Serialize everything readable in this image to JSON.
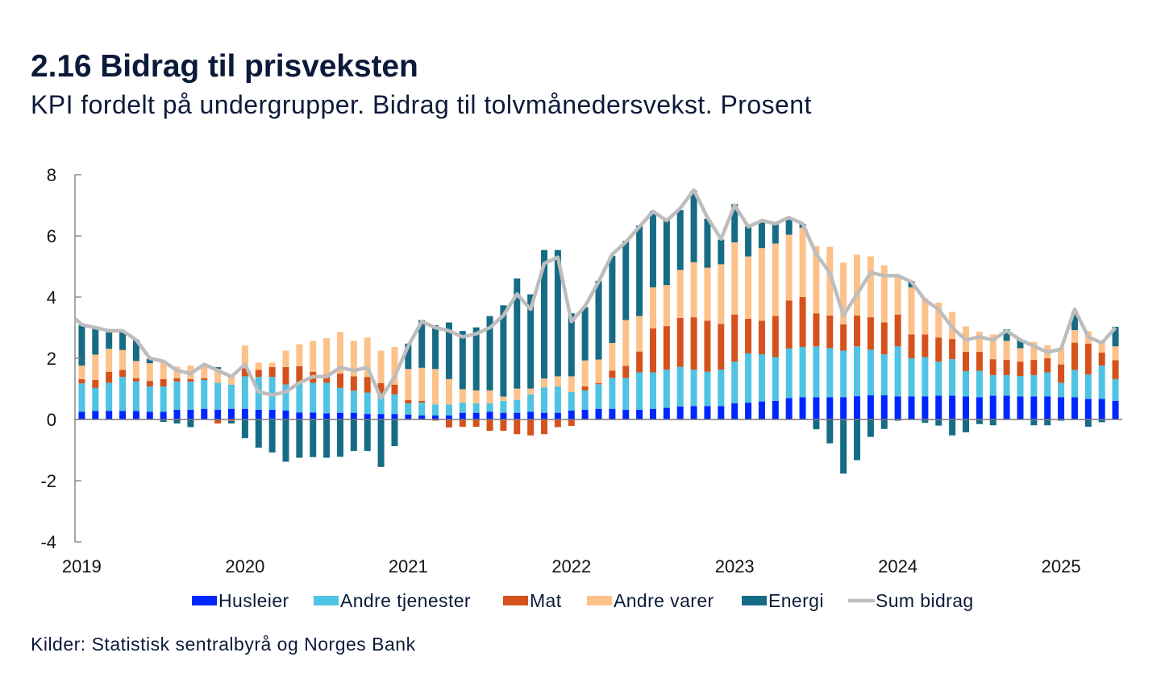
{
  "title": "2.16 Bidrag til prisveksten",
  "subtitle": "KPI fordelt på undergrupper. Bidrag til tolvmånedersvekst. Prosent",
  "source": "Kilder: Statistisk sentralbyrå og Norges Bank",
  "colors": {
    "text": "#0c1a3a",
    "axis": "#7a7a7a"
  },
  "chart_data": {
    "type": "bar",
    "stacked": true,
    "title": "2.16 Bidrag til prisveksten",
    "subtitle": "KPI fordelt på undergrupper. Bidrag til tolvmånedersvekst. Prosent",
    "xlabel": "",
    "ylabel": "",
    "ylim": [
      -4,
      8
    ],
    "y_ticks": [
      8,
      6,
      4,
      2,
      0,
      -2,
      -4
    ],
    "y_tick_labels": [
      "8",
      "6",
      "4",
      "2",
      "0",
      "-2",
      "-4"
    ],
    "x_tick_labels": [
      "2019",
      "2020",
      "2021",
      "2022",
      "2023",
      "2024",
      "2025"
    ],
    "grid": false,
    "legend_position": "bottom",
    "x": [
      "2019-01",
      "2019-02",
      "2019-03",
      "2019-04",
      "2019-05",
      "2019-06",
      "2019-07",
      "2019-08",
      "2019-09",
      "2019-10",
      "2019-11",
      "2019-12",
      "2020-01",
      "2020-02",
      "2020-03",
      "2020-04",
      "2020-05",
      "2020-06",
      "2020-07",
      "2020-08",
      "2020-09",
      "2020-10",
      "2020-11",
      "2020-12",
      "2021-01",
      "2021-02",
      "2021-03",
      "2021-04",
      "2021-05",
      "2021-06",
      "2021-07",
      "2021-08",
      "2021-09",
      "2021-10",
      "2021-11",
      "2021-12",
      "2022-01",
      "2022-02",
      "2022-03",
      "2022-04",
      "2022-05",
      "2022-06",
      "2022-07",
      "2022-08",
      "2022-09",
      "2022-10",
      "2022-11",
      "2022-12",
      "2023-01",
      "2023-02",
      "2023-03",
      "2023-04",
      "2023-05",
      "2023-06",
      "2023-07",
      "2023-08",
      "2023-09",
      "2023-10",
      "2023-11",
      "2023-12",
      "2024-01",
      "2024-02",
      "2024-03",
      "2024-04",
      "2024-05",
      "2024-06",
      "2024-07",
      "2024-08",
      "2024-09",
      "2024-10",
      "2024-11",
      "2024-12",
      "2025-01",
      "2025-02",
      "2025-03",
      "2025-04",
      "2025-05"
    ],
    "series": [
      {
        "name": "Husleier",
        "type": "bar",
        "color": "#0026ff",
        "values": [
          0.25,
          0.28,
          0.28,
          0.28,
          0.28,
          0.25,
          0.25,
          0.32,
          0.32,
          0.35,
          0.32,
          0.35,
          0.35,
          0.32,
          0.32,
          0.29,
          0.23,
          0.23,
          0.2,
          0.22,
          0.22,
          0.18,
          0.18,
          0.18,
          0.16,
          0.13,
          0.13,
          0.13,
          0.22,
          0.22,
          0.25,
          0.22,
          0.22,
          0.25,
          0.22,
          0.22,
          0.29,
          0.32,
          0.35,
          0.35,
          0.32,
          0.32,
          0.35,
          0.38,
          0.42,
          0.44,
          0.44,
          0.44,
          0.53,
          0.55,
          0.59,
          0.61,
          0.7,
          0.73,
          0.73,
          0.73,
          0.73,
          0.76,
          0.79,
          0.79,
          0.75,
          0.75,
          0.75,
          0.78,
          0.78,
          0.75,
          0.73,
          0.78,
          0.78,
          0.75,
          0.75,
          0.75,
          0.73,
          0.73,
          0.67,
          0.67,
          0.61
        ]
      },
      {
        "name": "Andre tjenester",
        "type": "bar",
        "color": "#4fc3e3",
        "values": [
          0.93,
          0.75,
          0.92,
          1.11,
          0.96,
          0.83,
          0.83,
          0.92,
          0.92,
          0.94,
          0.88,
          0.79,
          1.06,
          1.07,
          1.07,
          0.85,
          0.97,
          0.97,
          1.0,
          0.81,
          0.72,
          0.7,
          0.55,
          0.64,
          0.37,
          0.42,
          0.36,
          0.36,
          0.33,
          0.31,
          0.28,
          0.39,
          0.42,
          0.57,
          0.83,
          0.86,
          0.61,
          0.63,
          0.8,
          1.01,
          1.04,
          1.22,
          1.19,
          1.25,
          1.3,
          1.19,
          1.12,
          1.19,
          1.36,
          1.61,
          1.54,
          1.43,
          1.62,
          1.64,
          1.66,
          1.6,
          1.52,
          1.63,
          1.49,
          1.34,
          1.64,
          1.25,
          1.29,
          1.11,
          1.19,
          0.83,
          0.86,
          0.67,
          0.67,
          0.67,
          0.7,
          0.79,
          0.47,
          0.89,
          0.8,
          1.09,
          0.71
        ]
      },
      {
        "name": "Mat",
        "type": "bar",
        "color": "#d5521c",
        "values": [
          0.14,
          0.26,
          0.36,
          0.23,
          0.11,
          0.18,
          0.24,
          0.11,
          0.08,
          0.06,
          -0.13,
          -0.05,
          0.27,
          0.23,
          0.32,
          0.57,
          0.54,
          0.36,
          0.27,
          0.47,
          0.47,
          0.51,
          0.46,
          0.32,
          0.11,
          0.06,
          -0.04,
          -0.26,
          -0.24,
          -0.24,
          -0.37,
          -0.37,
          -0.48,
          -0.52,
          -0.48,
          -0.25,
          -0.21,
          0.13,
          0.04,
          0.24,
          0.39,
          0.68,
          1.44,
          1.42,
          1.6,
          1.71,
          1.67,
          1.49,
          1.54,
          1.13,
          1.1,
          1.34,
          1.57,
          1.63,
          1.08,
          1.07,
          0.86,
          1.01,
          1.06,
          1.04,
          1.04,
          0.78,
          0.74,
          0.79,
          0.66,
          0.63,
          0.62,
          0.52,
          0.5,
          0.47,
          0.5,
          0.46,
          0.6,
          0.89,
          1.01,
          0.43,
          0.62
        ]
      },
      {
        "name": "Andre varer",
        "type": "bar",
        "color": "#fdc18a",
        "values": [
          0.44,
          0.83,
          0.75,
          0.65,
          0.56,
          0.58,
          0.59,
          0.38,
          0.44,
          0.39,
          0.45,
          0.33,
          0.74,
          0.24,
          0.15,
          0.54,
          0.72,
          1.01,
          1.19,
          1.36,
          1.16,
          1.29,
          1.06,
          1.23,
          1.01,
          1.08,
          1.16,
          0.83,
          0.44,
          0.42,
          0.42,
          0.14,
          0.37,
          0.19,
          0.29,
          0.33,
          0.51,
          0.85,
          0.77,
          0.9,
          1.5,
          1.16,
          1.34,
          1.34,
          1.57,
          1.8,
          1.73,
          1.95,
          2.36,
          2.04,
          2.37,
          2.37,
          2.15,
          2.27,
          2.2,
          2.24,
          2.02,
          1.99,
          1.99,
          1.87,
          1.29,
          1.54,
          1.18,
          1.14,
          0.89,
          0.83,
          0.66,
          0.81,
          0.62,
          0.44,
          0.59,
          0.43,
          0.54,
          0.41,
          0.41,
          0.38,
          0.45
        ]
      },
      {
        "name": "Energi",
        "type": "bar",
        "color": "#166c85",
        "values": [
          1.32,
          0.85,
          0.54,
          0.63,
          0.69,
          0.14,
          -0.08,
          -0.13,
          -0.25,
          0.05,
          0.06,
          -0.08,
          -0.61,
          -0.92,
          -1.08,
          -1.38,
          -1.25,
          -1.23,
          -1.25,
          -1.22,
          -1.03,
          -1.03,
          -1.55,
          -0.87,
          0.83,
          1.56,
          1.43,
          1.85,
          1.9,
          2.06,
          2.43,
          2.98,
          3.6,
          3.08,
          4.2,
          4.13,
          2.06,
          1.74,
          2.57,
          2.85,
          2.59,
          2.96,
          2.49,
          2.13,
          1.95,
          2.34,
          1.6,
          0.81,
          1.25,
          0.99,
          0.87,
          0.64,
          0.52,
          0.12,
          -0.32,
          -0.78,
          -1.77,
          -1.33,
          -0.57,
          -0.31,
          -0.04,
          0.2,
          -0.11,
          -0.2,
          -0.52,
          -0.42,
          -0.15,
          -0.19,
          0.38,
          0.27,
          -0.19,
          -0.19,
          -0.04,
          0.61,
          -0.24,
          -0.09,
          0.64
        ]
      },
      {
        "name": "Sum bidrag",
        "type": "line",
        "color": "#bdbdbd",
        "left_edge_value": 3.3,
        "values": [
          3.1,
          3.0,
          2.9,
          2.9,
          2.6,
          2.0,
          1.9,
          1.6,
          1.5,
          1.8,
          1.6,
          1.4,
          1.8,
          0.9,
          0.8,
          0.9,
          1.2,
          1.4,
          1.4,
          1.7,
          1.6,
          1.7,
          0.7,
          1.4,
          2.4,
          3.2,
          3.0,
          2.9,
          2.7,
          2.8,
          3.0,
          3.4,
          4.1,
          3.6,
          5.1,
          5.3,
          3.2,
          3.7,
          4.5,
          5.4,
          5.8,
          6.3,
          6.8,
          6.5,
          6.9,
          7.5,
          6.6,
          5.9,
          7.0,
          6.3,
          6.5,
          6.4,
          6.6,
          6.4,
          5.4,
          4.8,
          3.4,
          4.1,
          4.8,
          4.7,
          4.7,
          4.5,
          3.9,
          3.6,
          3.0,
          2.6,
          2.7,
          2.6,
          2.9,
          2.6,
          2.4,
          2.2,
          2.3,
          3.6,
          2.7,
          2.5,
          3.0
        ]
      }
    ]
  }
}
